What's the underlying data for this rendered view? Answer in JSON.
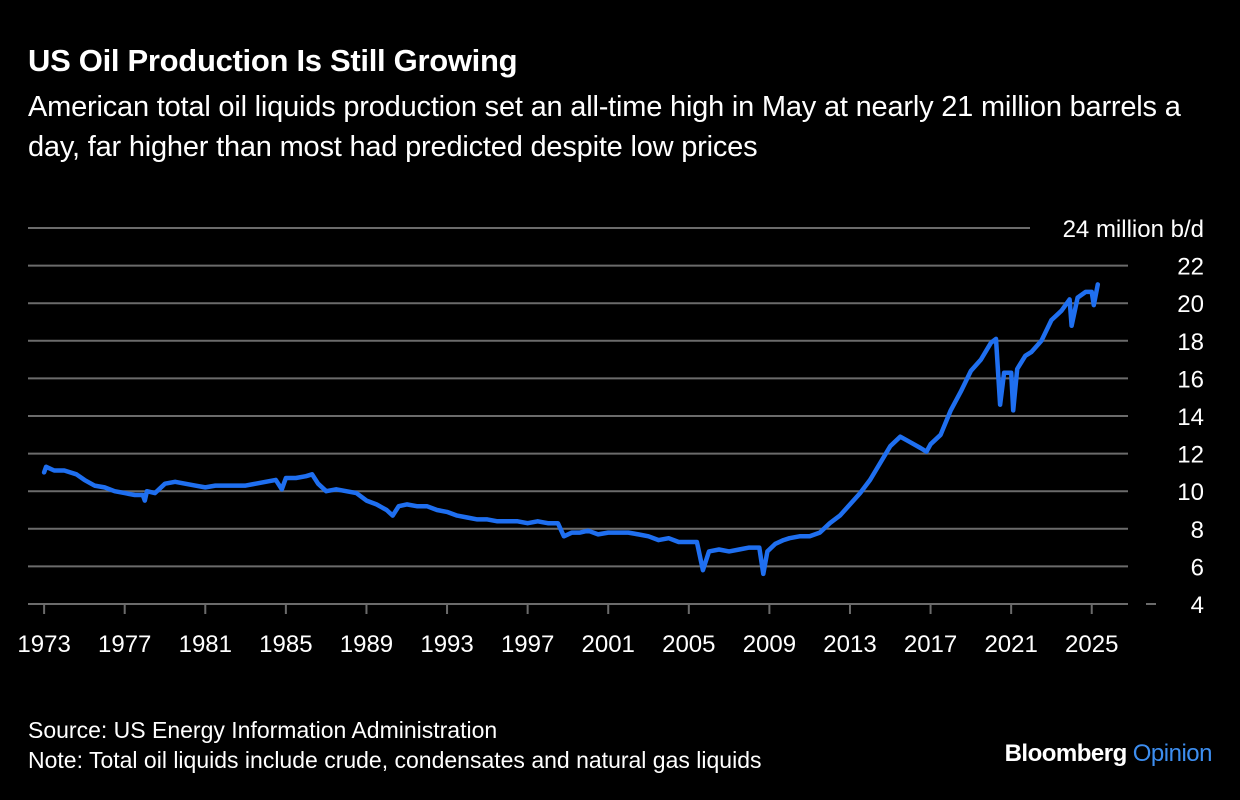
{
  "title": "US Oil Production Is Still Growing",
  "subtitle": "American total oil liquids production set an all-time high in May at nearly 21 million barrels a day, far higher than most had predicted despite low prices",
  "source": "Source: US Energy Information Administration",
  "note": "Note: Total oil liquids include crude, condensates and natural gas liquids",
  "logo": {
    "brand": "Bloomberg",
    "section": "Opinion"
  },
  "colors": {
    "background": "#000000",
    "line": "#1f6ff0",
    "grid": "#6b6b6b",
    "text": "#ffffff",
    "accent": "#3d8ef0"
  },
  "chart_data": {
    "type": "line",
    "title": "US Oil Production Is Still Growing",
    "unit_label": "24 million b/d",
    "xlim": [
      1972.2,
      2026.8
    ],
    "ylim": [
      4,
      24
    ],
    "y_ticks": [
      4,
      6,
      8,
      10,
      12,
      14,
      16,
      18,
      20,
      22,
      24
    ],
    "y_tick_labels": [
      "4",
      "6",
      "8",
      "10",
      "12",
      "14",
      "16",
      "18",
      "20",
      "22",
      "24 million b/d"
    ],
    "x_ticks": [
      1973,
      1977,
      1981,
      1985,
      1989,
      1993,
      1997,
      2001,
      2005,
      2009,
      2013,
      2017,
      2021,
      2025
    ],
    "x_tick_labels": [
      "1973",
      "1977",
      "1981",
      "1985",
      "1989",
      "1993",
      "1997",
      "2001",
      "2005",
      "2009",
      "2013",
      "2017",
      "2021",
      "2025"
    ],
    "grid": "horizontal",
    "legend": "none",
    "series": [
      {
        "color": "#1f6ff0",
        "points": [
          [
            1973.0,
            11.0
          ],
          [
            1973.1,
            11.3
          ],
          [
            1973.5,
            11.1
          ],
          [
            1974.0,
            11.1
          ],
          [
            1974.6,
            10.9
          ],
          [
            1975.0,
            10.6
          ],
          [
            1975.5,
            10.3
          ],
          [
            1976.0,
            10.2
          ],
          [
            1976.5,
            10.0
          ],
          [
            1977.0,
            9.9
          ],
          [
            1977.5,
            9.8
          ],
          [
            1977.9,
            9.8
          ],
          [
            1978.0,
            9.5
          ],
          [
            1978.1,
            10.0
          ],
          [
            1978.5,
            9.9
          ],
          [
            1979.0,
            10.4
          ],
          [
            1979.5,
            10.5
          ],
          [
            1980.0,
            10.4
          ],
          [
            1980.5,
            10.3
          ],
          [
            1981.0,
            10.2
          ],
          [
            1981.5,
            10.3
          ],
          [
            1982.0,
            10.3
          ],
          [
            1982.5,
            10.3
          ],
          [
            1983.0,
            10.3
          ],
          [
            1983.5,
            10.4
          ],
          [
            1984.0,
            10.5
          ],
          [
            1984.5,
            10.6
          ],
          [
            1984.8,
            10.1
          ],
          [
            1985.0,
            10.7
          ],
          [
            1985.5,
            10.7
          ],
          [
            1986.0,
            10.8
          ],
          [
            1986.3,
            10.9
          ],
          [
            1986.6,
            10.4
          ],
          [
            1987.0,
            10.0
          ],
          [
            1987.5,
            10.1
          ],
          [
            1988.0,
            10.0
          ],
          [
            1988.5,
            9.9
          ],
          [
            1989.0,
            9.5
          ],
          [
            1989.5,
            9.3
          ],
          [
            1990.0,
            9.0
          ],
          [
            1990.3,
            8.7
          ],
          [
            1990.6,
            9.2
          ],
          [
            1991.0,
            9.3
          ],
          [
            1991.5,
            9.2
          ],
          [
            1992.0,
            9.2
          ],
          [
            1992.5,
            9.0
          ],
          [
            1993.0,
            8.9
          ],
          [
            1993.5,
            8.7
          ],
          [
            1994.0,
            8.6
          ],
          [
            1994.5,
            8.5
          ],
          [
            1995.0,
            8.5
          ],
          [
            1995.5,
            8.4
          ],
          [
            1996.0,
            8.4
          ],
          [
            1996.5,
            8.4
          ],
          [
            1997.0,
            8.3
          ],
          [
            1997.5,
            8.4
          ],
          [
            1998.0,
            8.3
          ],
          [
            1998.5,
            8.3
          ],
          [
            1998.8,
            7.6
          ],
          [
            1999.2,
            7.8
          ],
          [
            1999.6,
            7.8
          ],
          [
            2000.0,
            7.9
          ],
          [
            2000.5,
            7.7
          ],
          [
            2001.0,
            7.8
          ],
          [
            2001.5,
            7.8
          ],
          [
            2002.0,
            7.8
          ],
          [
            2002.5,
            7.7
          ],
          [
            2003.0,
            7.6
          ],
          [
            2003.5,
            7.4
          ],
          [
            2004.0,
            7.5
          ],
          [
            2004.5,
            7.3
          ],
          [
            2005.0,
            7.3
          ],
          [
            2005.4,
            7.3
          ],
          [
            2005.7,
            5.8
          ],
          [
            2006.0,
            6.8
          ],
          [
            2006.5,
            6.9
          ],
          [
            2007.0,
            6.8
          ],
          [
            2007.5,
            6.9
          ],
          [
            2008.0,
            7.0
          ],
          [
            2008.5,
            7.0
          ],
          [
            2008.7,
            5.6
          ],
          [
            2008.9,
            6.8
          ],
          [
            2009.3,
            7.2
          ],
          [
            2009.7,
            7.4
          ],
          [
            2010.0,
            7.5
          ],
          [
            2010.5,
            7.6
          ],
          [
            2011.0,
            7.6
          ],
          [
            2011.5,
            7.8
          ],
          [
            2012.0,
            8.3
          ],
          [
            2012.5,
            8.7
          ],
          [
            2013.0,
            9.3
          ],
          [
            2013.5,
            9.9
          ],
          [
            2014.0,
            10.6
          ],
          [
            2014.5,
            11.5
          ],
          [
            2015.0,
            12.4
          ],
          [
            2015.5,
            12.9
          ],
          [
            2016.0,
            12.6
          ],
          [
            2016.5,
            12.3
          ],
          [
            2016.8,
            12.1
          ],
          [
            2017.0,
            12.5
          ],
          [
            2017.5,
            13.0
          ],
          [
            2018.0,
            14.3
          ],
          [
            2018.5,
            15.3
          ],
          [
            2019.0,
            16.4
          ],
          [
            2019.5,
            17.0
          ],
          [
            2020.0,
            17.9
          ],
          [
            2020.25,
            18.1
          ],
          [
            2020.45,
            14.6
          ],
          [
            2020.65,
            16.3
          ],
          [
            2020.85,
            16.3
          ],
          [
            2021.0,
            16.3
          ],
          [
            2021.1,
            14.3
          ],
          [
            2021.3,
            16.5
          ],
          [
            2021.7,
            17.2
          ],
          [
            2022.0,
            17.4
          ],
          [
            2022.5,
            18.0
          ],
          [
            2023.0,
            19.1
          ],
          [
            2023.5,
            19.6
          ],
          [
            2023.9,
            20.2
          ],
          [
            2024.0,
            18.8
          ],
          [
            2024.3,
            20.3
          ],
          [
            2024.7,
            20.6
          ],
          [
            2025.0,
            20.6
          ],
          [
            2025.1,
            19.9
          ],
          [
            2025.3,
            21.0
          ]
        ]
      }
    ]
  }
}
